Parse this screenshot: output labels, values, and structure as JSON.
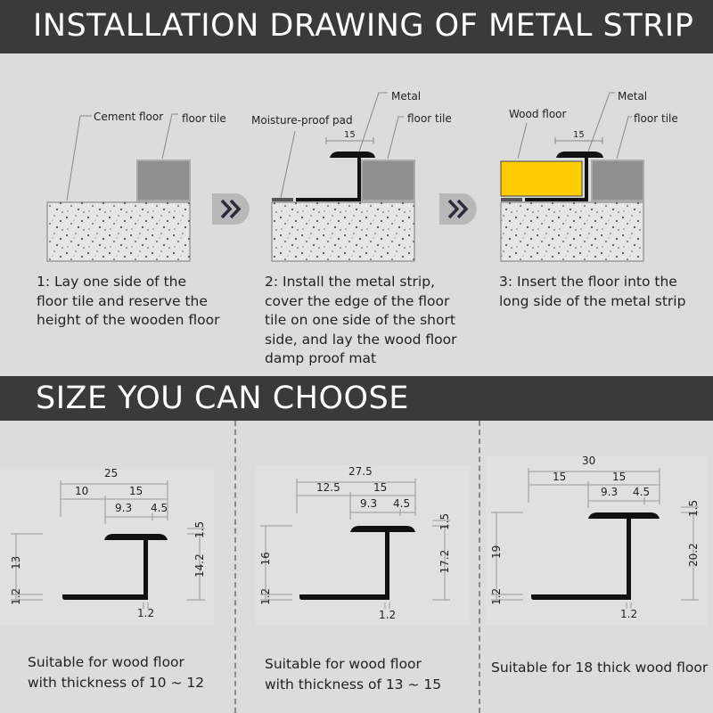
{
  "header": {
    "title": "INSTALLATION DRAWING OF METAL STRIP"
  },
  "steps": [
    {
      "labels": {
        "cement": "Cement floor",
        "tile": "floor tile"
      },
      "caption": [
        "1: Lay one side of the",
        "floor tile and reserve the",
        "height of the wooden floor"
      ]
    },
    {
      "labels": {
        "pad": "Moisture-proof pad",
        "metal": "Metal",
        "tile": "floor tile",
        "dim": "15"
      },
      "caption": [
        "2: Install the metal strip,",
        "cover the edge of the floor",
        "tile on one side of the short",
        "side, and lay the wood floor",
        "damp proof mat"
      ]
    },
    {
      "labels": {
        "wood": "Wood floor",
        "metal": "Metal",
        "tile": "floor tile",
        "dim": "15"
      },
      "caption": [
        "3: Insert the floor into the",
        "long side of the metal strip"
      ]
    }
  ],
  "arrow_icon": "double-chevron-right",
  "section2": {
    "title": "SIZE YOU CAN CHOOSE"
  },
  "sizes": [
    {
      "dims": {
        "total": "25",
        "left": "10",
        "right": "15",
        "a": "9.3",
        "b": "4.5",
        "height": "13",
        "base": "1.2",
        "right_height": "14.2",
        "cap": "1.5",
        "wall": "1.2"
      },
      "caption": [
        "Suitable for wood floor",
        "with thickness of 10 ~ 12"
      ]
    },
    {
      "dims": {
        "total": "27.5",
        "left": "12.5",
        "right": "15",
        "a": "9.3",
        "b": "4.5",
        "height": "16",
        "base": "1.2",
        "right_height": "17.2",
        "cap": "1.5",
        "wall": "1.2"
      },
      "caption": [
        "Suitable for wood floor",
        "with thickness of 13 ~ 15"
      ]
    },
    {
      "dims": {
        "total": "30",
        "left": "15",
        "right": "15",
        "a": "9.3",
        "b": "4.5",
        "height": "19",
        "base": "1.2",
        "right_height": "20.2",
        "cap": "1.5",
        "wall": "1.2"
      },
      "caption": [
        "Suitable for 18 thick wood floor"
      ]
    }
  ],
  "colors": {
    "band": "#3a3a3a",
    "background": "#dcdcdc",
    "wood": "#ffcc00",
    "tile": "#8f8f8f",
    "metal": "#111111"
  }
}
